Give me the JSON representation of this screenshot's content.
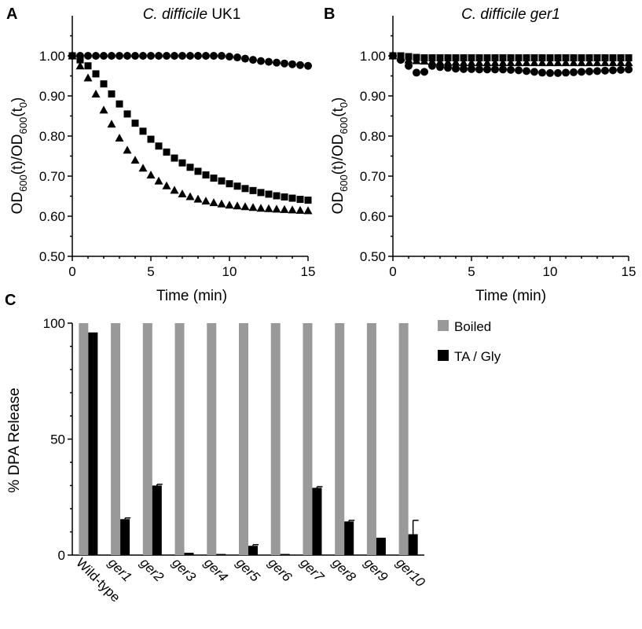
{
  "panels": {
    "a": {
      "letter": "A",
      "title_italic": "C. difficile",
      "title_plain": " UK1",
      "xlabel": "Time (min)",
      "ylabel_parts": [
        "OD",
        "600",
        "(t)/OD",
        "600",
        "(t",
        "0",
        ")"
      ]
    },
    "b": {
      "letter": "B",
      "title_italic": "C. difficile ger1",
      "xlabel": "Time (min)",
      "ylabel_parts": [
        "OD",
        "600",
        "(t)/OD",
        "600",
        "(t",
        "0",
        ")"
      ]
    },
    "c": {
      "letter": "C",
      "ylabel": "% DPA Release",
      "legend": [
        {
          "label": "Boiled",
          "color": "#999999"
        },
        {
          "label": "TA / Gly",
          "color": "#000000"
        }
      ]
    }
  },
  "chart_data": [
    {
      "id": "a",
      "type": "scatter",
      "title": "C. difficile UK1",
      "xlabel": "Time (min)",
      "ylabel": "OD600(t)/OD600(t0)",
      "xlim": [
        0,
        15
      ],
      "ylim": [
        0.5,
        1.1
      ],
      "xticks": [
        0,
        5,
        10,
        15
      ],
      "xtick_labels": [
        "0",
        "5",
        "10",
        "15"
      ],
      "yticks": [
        0.5,
        0.6,
        0.7,
        0.8,
        0.9,
        1.0
      ],
      "ytick_labels": [
        "0.50",
        "0.60",
        "0.70",
        "0.80",
        "0.90",
        "1.00"
      ],
      "x": [
        0,
        0.5,
        1,
        1.5,
        2,
        2.5,
        3,
        3.5,
        4,
        4.5,
        5,
        5.5,
        6,
        6.5,
        7,
        7.5,
        8,
        8.5,
        9,
        9.5,
        10,
        10.5,
        11,
        11.5,
        12,
        12.5,
        13,
        13.5,
        14,
        14.5,
        15
      ],
      "series": [
        {
          "marker": "circle",
          "values": [
            1.0,
            1.0,
            1.0,
            1.0,
            1.0,
            1.0,
            1.0,
            1.0,
            1.0,
            1.0,
            1.0,
            1.0,
            1.0,
            1.0,
            1.0,
            1.0,
            1.0,
            1.0,
            1.0,
            1.0,
            0.998,
            0.996,
            0.993,
            0.99,
            0.987,
            0.985,
            0.983,
            0.981,
            0.979,
            0.977,
            0.975
          ]
        },
        {
          "marker": "square",
          "values": [
            1.0,
            0.99,
            0.975,
            0.955,
            0.93,
            0.905,
            0.88,
            0.855,
            0.832,
            0.812,
            0.792,
            0.775,
            0.76,
            0.745,
            0.733,
            0.722,
            0.712,
            0.703,
            0.695,
            0.688,
            0.681,
            0.675,
            0.669,
            0.664,
            0.659,
            0.655,
            0.651,
            0.648,
            0.645,
            0.642,
            0.64
          ]
        },
        {
          "marker": "triangle",
          "values": [
            1.0,
            0.975,
            0.945,
            0.905,
            0.865,
            0.83,
            0.795,
            0.765,
            0.74,
            0.72,
            0.703,
            0.688,
            0.676,
            0.665,
            0.656,
            0.649,
            0.643,
            0.638,
            0.634,
            0.631,
            0.628,
            0.626,
            0.624,
            0.622,
            0.62,
            0.619,
            0.618,
            0.617,
            0.616,
            0.615,
            0.614
          ]
        }
      ]
    },
    {
      "id": "b",
      "type": "scatter",
      "title": "C. difficile ger1",
      "xlabel": "Time (min)",
      "ylabel": "OD600(t)/OD600(t0)",
      "xlim": [
        0,
        15
      ],
      "ylim": [
        0.5,
        1.1
      ],
      "xticks": [
        0,
        5,
        10,
        15
      ],
      "xtick_labels": [
        "0",
        "5",
        "10",
        "15"
      ],
      "yticks": [
        0.5,
        0.6,
        0.7,
        0.8,
        0.9,
        1.0
      ],
      "ytick_labels": [
        "0.50",
        "0.60",
        "0.70",
        "0.80",
        "0.90",
        "1.00"
      ],
      "x": [
        0,
        0.5,
        1,
        1.5,
        2,
        2.5,
        3,
        3.5,
        4,
        4.5,
        5,
        5.5,
        6,
        6.5,
        7,
        7.5,
        8,
        8.5,
        9,
        9.5,
        10,
        10.5,
        11,
        11.5,
        12,
        12.5,
        13,
        13.5,
        14,
        14.5,
        15
      ],
      "series": [
        {
          "marker": "circle",
          "values": [
            1.0,
            0.99,
            0.975,
            0.958,
            0.96,
            0.975,
            0.972,
            0.97,
            0.968,
            0.967,
            0.967,
            0.966,
            0.966,
            0.966,
            0.966,
            0.965,
            0.964,
            0.962,
            0.96,
            0.958,
            0.957,
            0.957,
            0.958,
            0.959,
            0.96,
            0.961,
            0.962,
            0.963,
            0.964,
            0.965,
            0.966
          ]
        },
        {
          "marker": "triangle",
          "values": [
            1.0,
            0.995,
            0.99,
            0.988,
            0.987,
            0.986,
            0.985,
            0.984,
            0.984,
            0.983,
            0.983,
            0.983,
            0.983,
            0.983,
            0.983,
            0.983,
            0.983,
            0.983,
            0.983,
            0.983,
            0.983,
            0.983,
            0.983,
            0.983,
            0.983,
            0.983,
            0.983,
            0.983,
            0.983,
            0.983,
            0.983
          ]
        },
        {
          "marker": "square",
          "values": [
            1.0,
            1.0,
            0.998,
            0.996,
            0.995,
            0.995,
            0.995,
            0.995,
            0.995,
            0.995,
            0.995,
            0.995,
            0.995,
            0.995,
            0.995,
            0.995,
            0.995,
            0.995,
            0.995,
            0.995,
            0.995,
            0.995,
            0.995,
            0.995,
            0.995,
            0.995,
            0.995,
            0.995,
            0.995,
            0.995,
            0.995
          ]
        }
      ]
    },
    {
      "id": "c",
      "type": "bar",
      "ylabel": "% DPA Release",
      "ylim": [
        0,
        100
      ],
      "yticks": [
        0,
        50,
        100
      ],
      "ytick_labels": [
        "0",
        "50",
        "100"
      ],
      "legend_position": "top-right",
      "categories": [
        "Wild-type",
        "ger1",
        "ger2",
        "ger3",
        "ger4",
        "ger5",
        "ger6",
        "ger7",
        "ger8",
        "ger9",
        "ger10"
      ],
      "category_italic": [
        false,
        true,
        true,
        true,
        true,
        true,
        true,
        true,
        true,
        true,
        true
      ],
      "series": [
        {
          "name": "Boiled",
          "color": "#999999",
          "values": [
            100,
            100,
            100,
            100,
            100,
            100,
            100,
            100,
            100,
            100,
            100
          ]
        },
        {
          "name": "TA / Gly",
          "color": "#000000",
          "values": [
            96,
            15.5,
            30,
            1,
            0.5,
            4,
            0.5,
            29,
            14.5,
            7.5,
            9
          ],
          "errors": [
            0,
            0.5,
            0.5,
            0,
            0,
            0.5,
            0,
            0.5,
            0.5,
            0,
            6
          ]
        }
      ]
    }
  ]
}
